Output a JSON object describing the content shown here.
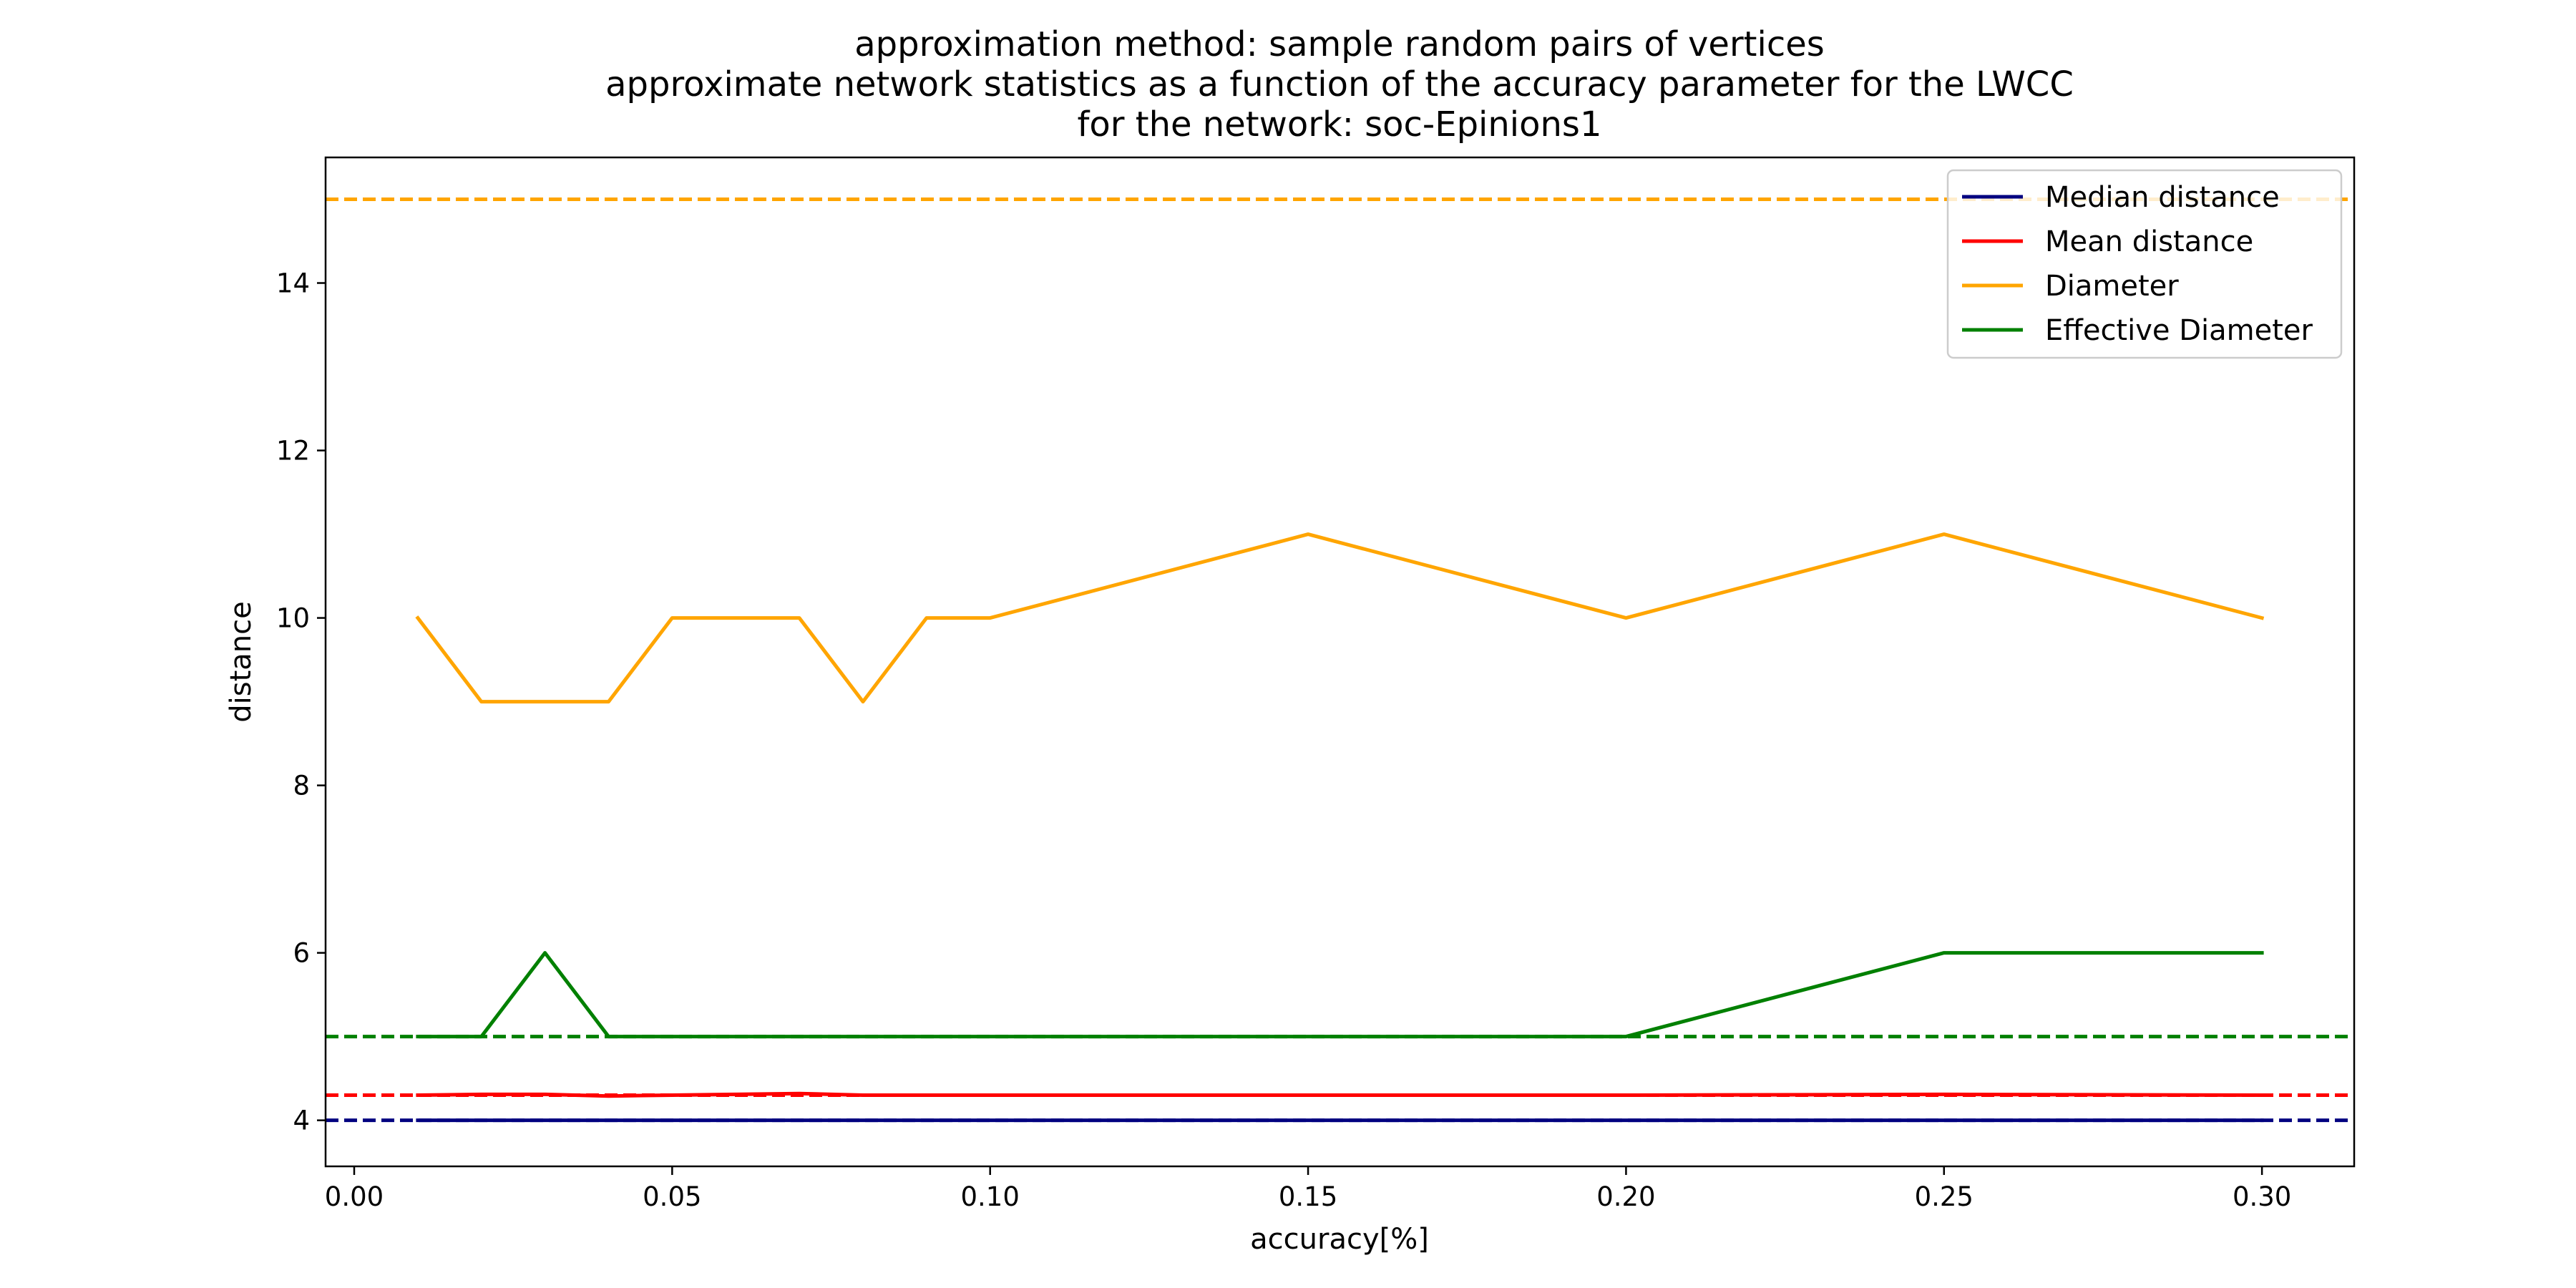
{
  "chart_data": {
    "type": "line",
    "title_lines": [
      "approximation method: sample random pairs of vertices",
      "approximate network statistics as a function of the accuracy parameter for  the LWCC",
      "for the network: soc-Epinions1"
    ],
    "xlabel": "accuracy[%]",
    "ylabel": "distance",
    "xlim": [
      -0.0045,
      0.3145
    ],
    "ylim": [
      3.45,
      15.5
    ],
    "xticks": [
      0.0,
      0.05,
      0.1,
      0.15,
      0.2,
      0.25,
      0.3
    ],
    "xtick_labels": [
      "0.00",
      "0.05",
      "0.10",
      "0.15",
      "0.20",
      "0.25",
      "0.30"
    ],
    "yticks": [
      4,
      6,
      8,
      10,
      12,
      14
    ],
    "ytick_labels": [
      "4",
      "6",
      "8",
      "10",
      "12",
      "14"
    ],
    "x": [
      0.01,
      0.02,
      0.03,
      0.04,
      0.05,
      0.06,
      0.07,
      0.08,
      0.09,
      0.1,
      0.15,
      0.2,
      0.25,
      0.3
    ],
    "series": [
      {
        "name": "Median distance",
        "color": "#000080",
        "values": [
          4,
          4,
          4,
          4,
          4,
          4,
          4,
          4,
          4,
          4,
          4,
          4,
          4,
          4
        ]
      },
      {
        "name": "Mean distance",
        "color": "#ff0000",
        "values": [
          4.3,
          4.31,
          4.31,
          4.29,
          4.3,
          4.31,
          4.32,
          4.3,
          4.3,
          4.3,
          4.3,
          4.3,
          4.31,
          4.3
        ]
      },
      {
        "name": "Diameter",
        "color": "#ffa500",
        "values": [
          10,
          9,
          9,
          9,
          10,
          10,
          10,
          9,
          10,
          10,
          11,
          10,
          11,
          10
        ]
      },
      {
        "name": "Effective Diameter",
        "color": "#008000",
        "values": [
          5,
          5,
          6,
          5,
          5,
          5,
          5,
          5,
          5,
          5,
          5,
          5,
          6,
          6
        ]
      }
    ],
    "reference_lines": [
      {
        "color": "#000080",
        "y": 4,
        "style": "dashed"
      },
      {
        "color": "#ff0000",
        "y": 4.3,
        "style": "dashed"
      },
      {
        "color": "#ffa500",
        "y": 15,
        "style": "dashed"
      },
      {
        "color": "#008000",
        "y": 5,
        "style": "dashed"
      }
    ],
    "legend_position": "top-right",
    "grid": false
  }
}
